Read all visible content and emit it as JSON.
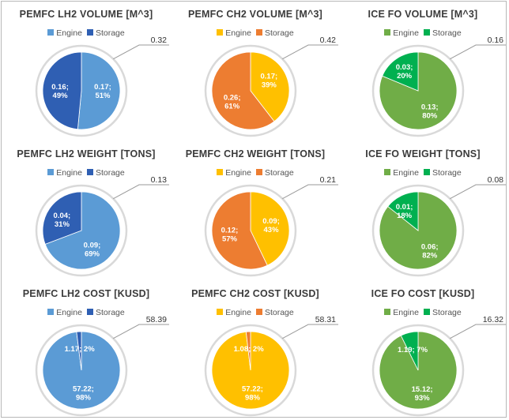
{
  "colors": {
    "lh2_engine": "#5b9bd5",
    "lh2_storage": "#2f5fb3",
    "ch2_engine": "#ffc000",
    "ch2_storage": "#ed7d31",
    "fo_engine": "#70ad47",
    "fo_storage": "#00b050"
  },
  "chart_data": [
    {
      "type": "pie",
      "title": "PEMFC LH2 VOLUME [M^3]",
      "legend": [
        "Engine",
        "Storage"
      ],
      "total": "0.32",
      "colors": [
        "lh2_engine",
        "lh2_storage"
      ],
      "slices": [
        {
          "name": "Engine",
          "value": 0.17,
          "label1": "0.17;",
          "label2": "51%"
        },
        {
          "name": "Storage",
          "value": 0.16,
          "label1": "0.16;",
          "label2": "49%"
        }
      ]
    },
    {
      "type": "pie",
      "title": "PEMFC CH2 VOLUME [M^3]",
      "legend": [
        "Engine",
        "Storage"
      ],
      "total": "0.42",
      "colors": [
        "ch2_engine",
        "ch2_storage"
      ],
      "slices": [
        {
          "name": "Engine",
          "value": 0.17,
          "label1": "0.17;",
          "label2": "39%"
        },
        {
          "name": "Storage",
          "value": 0.26,
          "label1": "0.26;",
          "label2": "61%"
        }
      ]
    },
    {
      "type": "pie",
      "title": "ICE FO VOLUME [M^3]",
      "legend": [
        "Engine",
        "Storage"
      ],
      "total": "0.16",
      "colors": [
        "fo_engine",
        "fo_storage"
      ],
      "slices": [
        {
          "name": "Engine",
          "value": 0.13,
          "label1": "0.13;",
          "label2": "80%"
        },
        {
          "name": "Storage",
          "value": 0.03,
          "label1": "0.03;",
          "label2": "20%"
        }
      ]
    },
    {
      "type": "pie",
      "title": "PEMFC LH2 WEIGHT [TONS]",
      "legend": [
        "Engine",
        "Storage"
      ],
      "total": "0.13",
      "colors": [
        "lh2_engine",
        "lh2_storage"
      ],
      "slices": [
        {
          "name": "Engine",
          "value": 0.09,
          "label1": "0.09;",
          "label2": "69%"
        },
        {
          "name": "Storage",
          "value": 0.04,
          "label1": "0.04;",
          "label2": "31%"
        }
      ]
    },
    {
      "type": "pie",
      "title": "PEMFC CH2 WEIGHT [TONS]",
      "legend": [
        "Engine",
        "Storage"
      ],
      "total": "0.21",
      "colors": [
        "ch2_engine",
        "ch2_storage"
      ],
      "slices": [
        {
          "name": "Engine",
          "value": 0.09,
          "label1": "0.09;",
          "label2": "43%"
        },
        {
          "name": "Storage",
          "value": 0.12,
          "label1": "0.12;",
          "label2": "57%"
        }
      ]
    },
    {
      "type": "pie",
      "title": "ICE FO WEIGHT [TONS]",
      "legend": [
        "Engine",
        "Storage"
      ],
      "total": "0.08",
      "colors": [
        "fo_engine",
        "fo_storage"
      ],
      "slices": [
        {
          "name": "Engine",
          "value": 0.06,
          "label1": "0.06;",
          "label2": "82%"
        },
        {
          "name": "Storage",
          "value": 0.01,
          "label1": "0.01;",
          "label2": "18%"
        }
      ]
    },
    {
      "type": "pie",
      "title": "PEMFC LH2 COST [KUSD]",
      "legend": [
        "Engine",
        "Storage"
      ],
      "total": "58.39",
      "colors": [
        "lh2_engine",
        "lh2_storage"
      ],
      "slices": [
        {
          "name": "Engine",
          "value": 57.22,
          "label1": "57.22;",
          "label2": "98%"
        },
        {
          "name": "Storage",
          "value": 1.17,
          "label1": "1.17; 2%",
          "label2": ""
        }
      ]
    },
    {
      "type": "pie",
      "title": "PEMFC CH2 COST [KUSD]",
      "legend": [
        "Engine",
        "Storage"
      ],
      "total": "58.31",
      "colors": [
        "ch2_engine",
        "ch2_storage"
      ],
      "slices": [
        {
          "name": "Engine",
          "value": 57.22,
          "label1": "57.22;",
          "label2": "98%"
        },
        {
          "name": "Storage",
          "value": 1.08,
          "label1": "1.08; 2%",
          "label2": ""
        }
      ]
    },
    {
      "type": "pie",
      "title": "ICE FO COST [KUSD]",
      "legend": [
        "Engine",
        "Storage"
      ],
      "total": "16.32",
      "colors": [
        "fo_engine",
        "fo_storage"
      ],
      "slices": [
        {
          "name": "Engine",
          "value": 15.12,
          "label1": "15.12;",
          "label2": "93%"
        },
        {
          "name": "Storage",
          "value": 1.19,
          "label1": "1.19; 7%",
          "label2": ""
        }
      ]
    }
  ]
}
